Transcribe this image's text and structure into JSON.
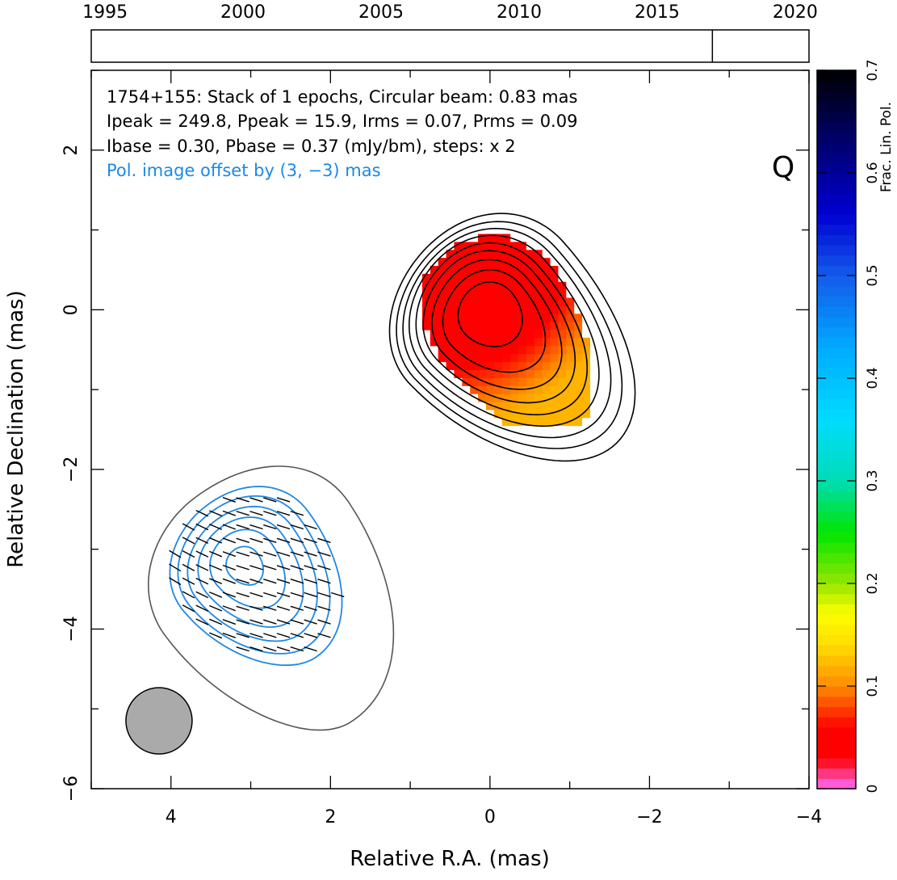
{
  "chart_data": {
    "type": "contour-map",
    "title_lines": [
      "1754+155: Stack of 1 epochs, Circular beam: 0.83 mas",
      "Ipeak = 249.8, Ppeak = 15.9, Irms = 0.07, Prms = 0.09",
      "Ibase = 0.30, Pbase = 0.37 (mJy/bm), steps: x 2"
    ],
    "pol_offset_note": "Pol. image offset by (3, −3) mas",
    "band": "Q",
    "xlabel": "Relative R.A. (mas)",
    "ylabel": "Relative Declination (mas)",
    "xlim": [
      5,
      -4
    ],
    "ylim": [
      -6,
      3
    ],
    "x_ticks": [
      4,
      2,
      0,
      -2,
      -4
    ],
    "x_tick_labels": [
      "4",
      "2",
      "0",
      "−2",
      "−4"
    ],
    "y_ticks": [
      -6,
      -4,
      -2,
      0,
      2
    ],
    "y_tick_labels": [
      "−6",
      "−4",
      "−2",
      "0",
      "2"
    ],
    "colorbar": {
      "label": "Frac. Lin. Pol.",
      "range": [
        0,
        0.7
      ],
      "ticks": [
        0,
        0.1,
        0.2,
        0.3,
        0.4,
        0.5,
        0.6,
        0.7
      ],
      "tick_labels": [
        "0",
        "0.1",
        "0.2",
        "0.3",
        "0.4",
        "0.5",
        "0.6",
        "0.7"
      ]
    },
    "timeline": {
      "range": [
        1994.5,
        2020.5
      ],
      "tick_labels": [
        "1995",
        "2000",
        "2005",
        "2010",
        "2015",
        "2020"
      ],
      "tick_years": [
        1995,
        2000,
        2005,
        2010,
        2015,
        2020
      ],
      "epochs": [
        2017.0
      ]
    },
    "beam": {
      "center": [
        4.15,
        -5.15
      ],
      "diameter": 0.83
    },
    "total_intensity_core": {
      "center": [
        0,
        0
      ]
    },
    "polarization_core": {
      "center": [
        3,
        -3
      ]
    },
    "frac_pol_range_shown": [
      0.03,
      0.12
    ]
  }
}
